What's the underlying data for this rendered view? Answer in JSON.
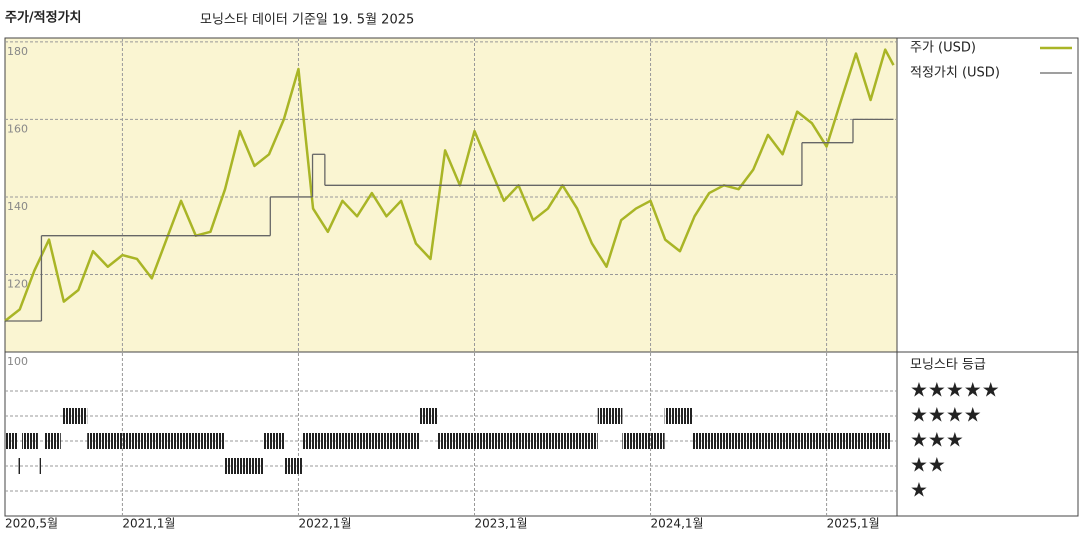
{
  "chart_data": {
    "type": "line",
    "title": "주가/적정가치",
    "subtitle": "모닝스타 데이터 기준일 19. 5월 2025",
    "x": [
      2020.333,
      2020.417,
      2020.5,
      2020.583,
      2020.667,
      2020.75,
      2020.833,
      2020.917,
      2021.0,
      2021.083,
      2021.167,
      2021.25,
      2021.333,
      2021.417,
      2021.5,
      2021.583,
      2021.667,
      2021.75,
      2021.833,
      2021.917,
      2022.0,
      2022.083,
      2022.167,
      2022.25,
      2022.333,
      2022.417,
      2022.5,
      2022.583,
      2022.667,
      2022.75,
      2022.833,
      2022.917,
      2023.0,
      2023.083,
      2023.167,
      2023.25,
      2023.333,
      2023.417,
      2023.5,
      2023.583,
      2023.667,
      2023.75,
      2023.833,
      2023.917,
      2024.0,
      2024.083,
      2024.167,
      2024.25,
      2024.333,
      2024.417,
      2024.5,
      2024.583,
      2024.667,
      2024.75,
      2024.833,
      2024.917,
      2025.0,
      2025.083,
      2025.167,
      2025.25,
      2025.333,
      2025.38
    ],
    "series": [
      {
        "name": "주가 (USD)",
        "color": "#a9b526",
        "values": [
          108,
          111,
          121,
          129,
          113,
          116,
          126,
          122,
          125,
          124,
          119,
          129,
          139,
          130,
          131,
          142,
          157,
          148,
          151,
          160,
          173,
          137,
          131,
          139,
          135,
          141,
          135,
          139,
          128,
          124,
          152,
          143,
          157,
          148,
          139,
          143,
          134,
          137,
          143,
          137,
          128,
          122,
          134,
          137,
          139,
          129,
          126,
          135,
          141,
          143,
          142,
          147,
          156,
          151,
          162,
          159,
          153,
          165,
          177,
          165,
          178,
          174
        ]
      },
      {
        "name": "적정가치 (USD)",
        "color": "#666666",
        "x": [
          2020.333,
          2020.54,
          2021.84,
          2022.08,
          2022.15,
          2024.86,
          2025.15
        ],
        "values": [
          108,
          130,
          140,
          151,
          143,
          154,
          160
        ]
      }
    ],
    "xlim": [
      2020.333,
      2025.4
    ],
    "xticks": [
      {
        "value": 2020.333,
        "label": "2020,5월"
      },
      {
        "value": 2021.0,
        "label": "2021,1월"
      },
      {
        "value": 2022.0,
        "label": "2022,1월"
      },
      {
        "value": 2023.0,
        "label": "2023,1월"
      },
      {
        "value": 2024.0,
        "label": "2024,1월"
      },
      {
        "value": 2025.0,
        "label": "2025,1월"
      }
    ],
    "ylim": [
      100,
      181
    ],
    "yticks": [
      100,
      120,
      140,
      160,
      180
    ],
    "grid": true,
    "rating_title": "모닝스타 등급",
    "rating_levels": [
      {
        "value": 5,
        "label": "★★★★★"
      },
      {
        "value": 4,
        "label": "★★★★"
      },
      {
        "value": 3,
        "label": "★★★"
      },
      {
        "value": 2,
        "label": "★★"
      },
      {
        "value": 1,
        "label": "★"
      }
    ],
    "ratings": {
      "start": [
        2020.333,
        2020.43,
        2020.56,
        2020.8,
        2021.8,
        2022.02,
        2022.79,
        2023.84,
        2024.24,
        2020.66,
        2022.69,
        2023.7,
        2024.08,
        2020.41,
        2020.53,
        2021.58,
        2021.92
      ],
      "end": [
        2020.407,
        2020.52,
        2020.65,
        2021.58,
        2021.92,
        2022.69,
        2023.7,
        2024.08,
        2025.36,
        2020.8,
        2022.79,
        2023.84,
        2024.24,
        2020.42,
        2020.54,
        2021.8,
        2022.02
      ],
      "stars": [
        3,
        3,
        3,
        3,
        3,
        3,
        3,
        3,
        3,
        4,
        4,
        4,
        4,
        2,
        2,
        2,
        2
      ]
    }
  }
}
